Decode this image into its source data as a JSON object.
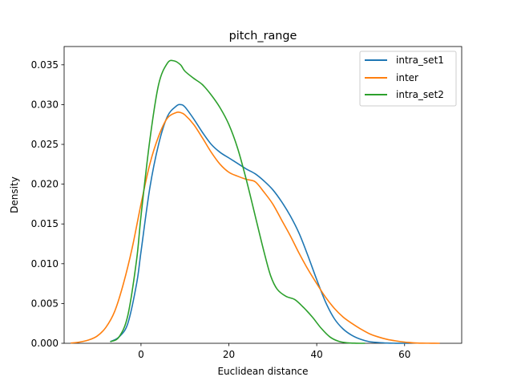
{
  "chart_data": {
    "type": "line",
    "title": "pitch_range",
    "xlabel": "Euclidean distance",
    "ylabel": "Density",
    "xlim": [
      -17.5,
      73
    ],
    "ylim": [
      0,
      0.0373
    ],
    "x_ticks": [
      0,
      20,
      40,
      60
    ],
    "y_ticks": [
      0.0,
      0.005,
      0.01,
      0.015,
      0.02,
      0.025,
      0.03,
      0.035
    ],
    "y_tick_labels": [
      "0.000",
      "0.005",
      "0.010",
      "0.015",
      "0.020",
      "0.025",
      "0.030",
      "0.035"
    ],
    "grid": false,
    "legend_position": "top-right",
    "series": [
      {
        "name": "intra_set1",
        "color": "#1f77b4",
        "x": [
          -7,
          -5,
          -3,
          -1,
          0,
          2,
          4,
          6,
          8,
          9,
          10,
          12,
          14,
          16,
          18,
          20,
          22,
          24,
          26,
          28,
          30,
          32,
          34,
          36,
          38,
          40,
          42,
          44,
          46,
          48,
          50,
          52,
          54,
          56,
          58,
          60,
          61
        ],
        "y": [
          0.0002,
          0.0008,
          0.0025,
          0.0075,
          0.0115,
          0.0195,
          0.025,
          0.0285,
          0.0298,
          0.03,
          0.0297,
          0.0282,
          0.0265,
          0.025,
          0.024,
          0.0233,
          0.0226,
          0.0219,
          0.0213,
          0.0204,
          0.0193,
          0.0178,
          0.016,
          0.0138,
          0.011,
          0.008,
          0.0052,
          0.0031,
          0.0018,
          0.001,
          0.0005,
          0.0002,
          0.0001,
          3e-05,
          1e-05,
          0.0,
          0.0
        ]
      },
      {
        "name": "inter",
        "color": "#ff7f0e",
        "x": [
          -16,
          -14,
          -12,
          -10,
          -8,
          -6,
          -4,
          -2,
          0,
          2,
          4,
          6,
          8,
          9,
          10,
          12,
          14,
          16,
          18,
          20,
          22,
          24,
          26,
          28,
          30,
          32,
          34,
          36,
          38,
          40,
          42,
          44,
          46,
          48,
          50,
          52,
          54,
          56,
          58,
          60,
          62,
          64,
          66,
          68
        ],
        "y": [
          3e-05,
          0.00015,
          0.0004,
          0.0009,
          0.002,
          0.004,
          0.0075,
          0.012,
          0.0175,
          0.0225,
          0.026,
          0.0283,
          0.029,
          0.029,
          0.0287,
          0.0275,
          0.0258,
          0.024,
          0.0225,
          0.0215,
          0.021,
          0.0206,
          0.0203,
          0.019,
          0.0175,
          0.0155,
          0.0135,
          0.0113,
          0.0093,
          0.0075,
          0.0058,
          0.0044,
          0.0033,
          0.0025,
          0.0018,
          0.0012,
          0.0008,
          0.0005,
          0.0003,
          0.00015,
          6e-05,
          2e-05,
          1e-05,
          0.0
        ]
      },
      {
        "name": "intra_set2",
        "color": "#2ca02c",
        "x": [
          -7,
          -5,
          -3,
          -1,
          0,
          2,
          4,
          6,
          7.5,
          9,
          10,
          12,
          14,
          16,
          18,
          20,
          22,
          24,
          26,
          28,
          29.5,
          31,
          33,
          35,
          37,
          39,
          41,
          43,
          45,
          47,
          49,
          51
        ],
        "y": [
          0.0002,
          0.0008,
          0.0035,
          0.0105,
          0.016,
          0.0255,
          0.0325,
          0.0352,
          0.0355,
          0.035,
          0.0342,
          0.0333,
          0.0325,
          0.0312,
          0.0296,
          0.0275,
          0.0245,
          0.0205,
          0.016,
          0.0115,
          0.0085,
          0.0068,
          0.0059,
          0.0055,
          0.0045,
          0.0033,
          0.0019,
          0.0008,
          0.00025,
          6e-05,
          1e-05,
          0.0
        ]
      }
    ]
  }
}
